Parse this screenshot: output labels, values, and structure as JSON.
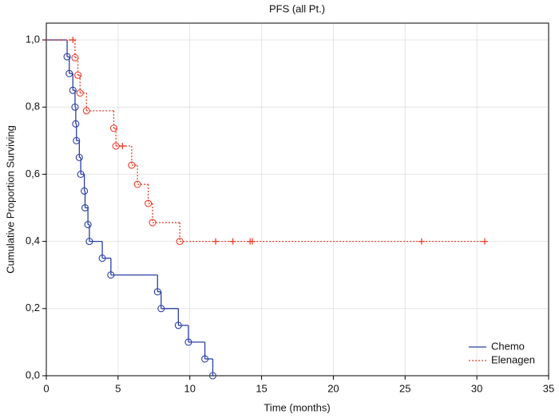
{
  "chart_data": {
    "type": "km",
    "title": "PFS (all Pt.)",
    "x_label": "Time (months)",
    "y_label": "Cumulative Proportion Surviving",
    "xlim": [
      0,
      35
    ],
    "ylim": [
      0,
      1.05
    ],
    "xticks": [
      0,
      5,
      10,
      15,
      20,
      25,
      30,
      35
    ],
    "yticks": [
      {
        "value": 0,
        "label": "0,0"
      },
      {
        "value": 0.2,
        "label": "0,2"
      },
      {
        "value": 0.4,
        "label": "0,4"
      },
      {
        "value": 0.6,
        "label": "0,6"
      },
      {
        "value": 0.8,
        "label": "0,8"
      },
      {
        "value": 1.0,
        "label": "1,0"
      }
    ],
    "grid": true,
    "legend": "lower right",
    "series": [
      {
        "name": "Chemo",
        "color": "#2b3fa6",
        "dash": "solid",
        "x": [
          0,
          1.45,
          1.6,
          1.85,
          2.0,
          2.05,
          2.1,
          2.3,
          2.4,
          2.65,
          2.7,
          2.9,
          3.0,
          3.9,
          4.5,
          7.75,
          8.0,
          9.2,
          9.9,
          11.05,
          11.6
        ],
        "values": [
          1.0,
          0.95,
          0.9,
          0.85,
          0.8,
          0.75,
          0.7,
          0.65,
          0.6,
          0.55,
          0.5,
          0.45,
          0.4,
          0.35,
          0.3,
          0.25,
          0.2,
          0.15,
          0.1,
          0.05,
          0.0
        ],
        "censored": {
          "x": [],
          "values": []
        }
      },
      {
        "name": "Elenagen",
        "color": "#e8402e",
        "dash": "dotted",
        "x": [
          0,
          2.0,
          2.2,
          2.35,
          2.8,
          4.7,
          4.85,
          5.95,
          6.35,
          7.1,
          7.4,
          9.3
        ],
        "values": [
          1.0,
          0.947,
          0.895,
          0.842,
          0.789,
          0.737,
          0.684,
          0.627,
          0.57,
          0.513,
          0.456,
          0.4
        ],
        "censored": {
          "x": [
            1.85,
            5.3,
            11.8,
            13.0,
            14.2,
            14.35,
            26.15,
            30.55
          ],
          "values": [
            1.0,
            0.684,
            0.4,
            0.4,
            0.4,
            0.4,
            0.4,
            0.4
          ]
        }
      }
    ]
  }
}
